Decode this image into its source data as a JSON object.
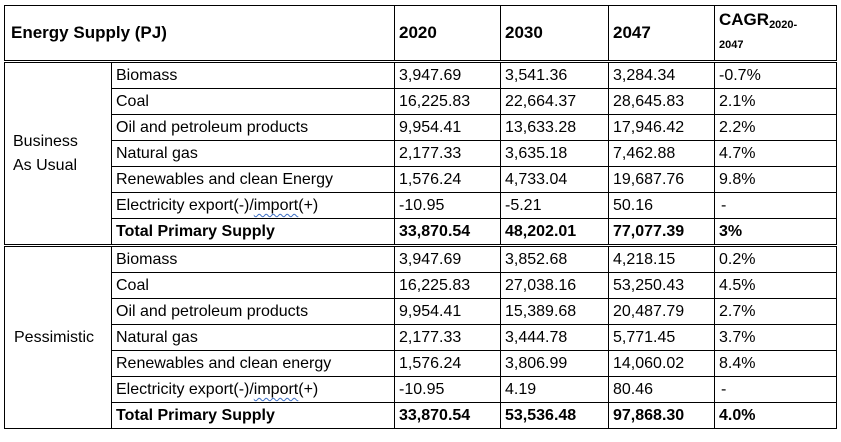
{
  "table": {
    "header": {
      "label": "Energy Supply (PJ)",
      "years": [
        "2020",
        "2030",
        "2047"
      ],
      "cagr_main": "CAGR",
      "cagr_sub_a": "2020-",
      "cagr_sub_b": "2047"
    },
    "sections": [
      {
        "scenario_line1": "Business",
        "scenario_line2": "As Usual",
        "rows": [
          {
            "name": "Biomass",
            "v2020": "3,947.69",
            "v2030": "3,541.36",
            "v2047": "3,284.34",
            "cagr": "-0.7%"
          },
          {
            "name": "Coal",
            "v2020": "16,225.83",
            "v2030": "22,664.37",
            "v2047": "28,645.83",
            "cagr": "2.1%"
          },
          {
            "name": "Oil and petroleum products",
            "v2020": "9,954.41",
            "v2030": "13,633.28",
            "v2047": "17,946.42",
            "cagr": "2.2%"
          },
          {
            "name": "Natural gas",
            "v2020": "2,177.33",
            "v2030": "3,635.18",
            "v2047": "7,462.88",
            "cagr": "4.7%"
          },
          {
            "name": "Renewables and clean Energy",
            "v2020": "1,576.24",
            "v2030": "4,733.04",
            "v2047": "19,687.76",
            "cagr": "9.8%"
          },
          {
            "name_a": "Electricity export(-)/",
            "name_b": "import",
            "name_c": "(+)",
            "v2020": "-10.95",
            "v2030": "-5.21",
            "v2047": "50.16",
            "cagr": "-"
          }
        ],
        "total": {
          "name": "Total Primary Supply",
          "v2020": "33,870.54",
          "v2030": "48,202.01",
          "v2047": "77,077.39",
          "cagr": "3%"
        }
      },
      {
        "scenario_line1": "Pessimistic",
        "scenario_line2": "",
        "rows": [
          {
            "name": "Biomass",
            "v2020": "3,947.69",
            "v2030": "3,852.68",
            "v2047": "4,218.15",
            "cagr": "0.2%"
          },
          {
            "name": "Coal",
            "v2020": "16,225.83",
            "v2030": "27,038.16",
            "v2047": "53,250.43",
            "cagr": "4.5%"
          },
          {
            "name": "Oil and petroleum products",
            "v2020": "9,954.41",
            "v2030": "15,389.68",
            "v2047": "20,487.79",
            "cagr": "2.7%"
          },
          {
            "name": "Natural gas",
            "v2020": "2,177.33",
            "v2030": "3,444.78",
            "v2047": "5,771.45",
            "cagr": "3.7%"
          },
          {
            "name": "Renewables and clean energy",
            "v2020": "1,576.24",
            "v2030": "3,806.99",
            "v2047": "14,060.02",
            "cagr": "8.4%"
          },
          {
            "name_a": "Electricity export(-)/",
            "name_b": "import",
            "name_c": "(+)",
            "v2020": "-10.95",
            "v2030": "4.19",
            "v2047": "80.46",
            "cagr": "-"
          }
        ],
        "total": {
          "name": "Total Primary Supply",
          "v2020": "33,870.54",
          "v2030": "53,536.48",
          "v2047": "97,868.30",
          "cagr": "4.0%"
        }
      }
    ]
  }
}
